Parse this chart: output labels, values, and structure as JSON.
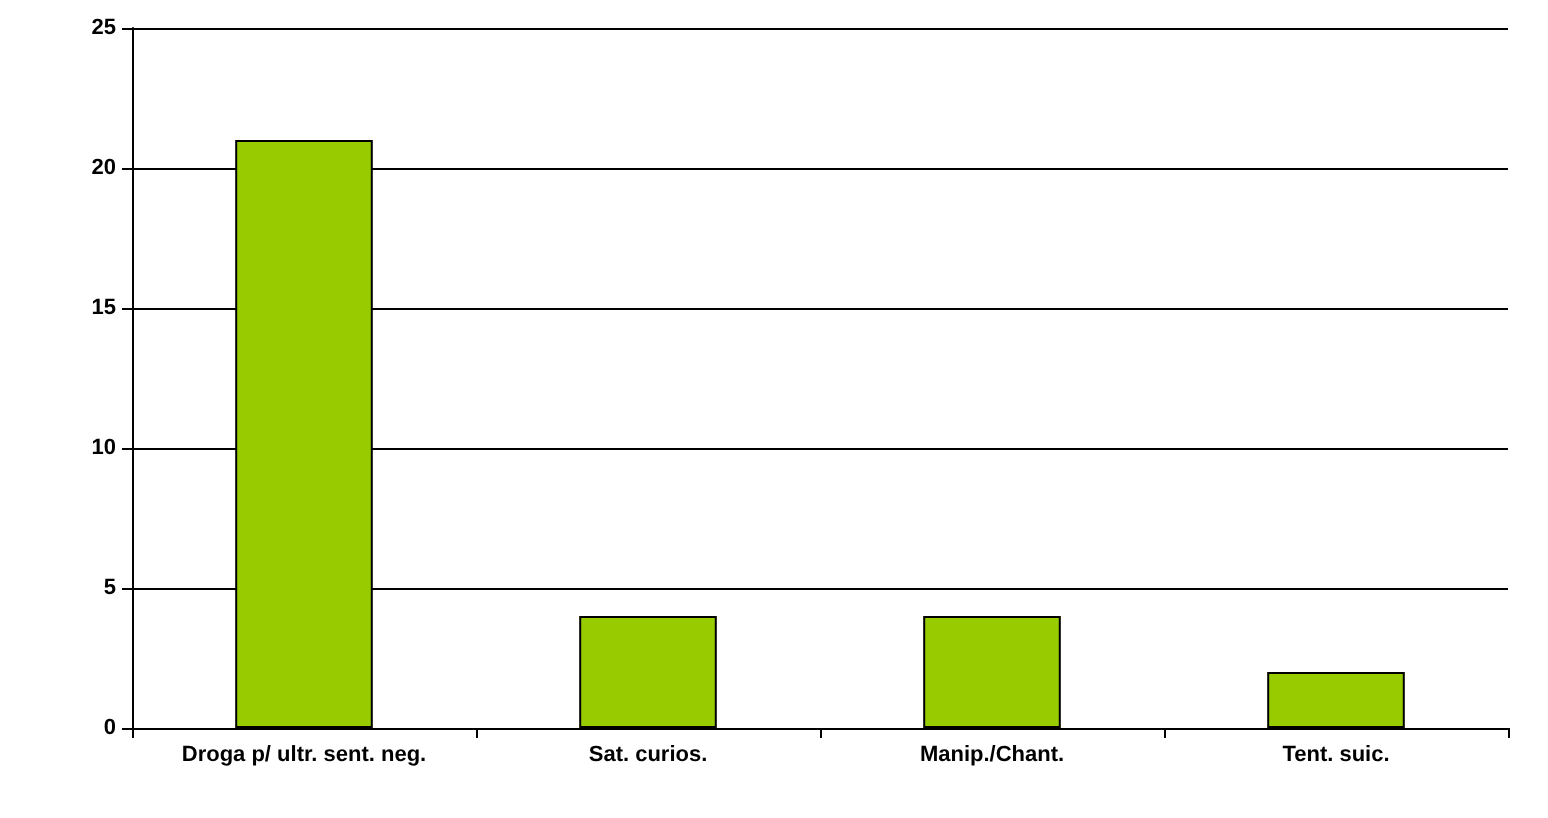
{
  "chart_data": {
    "type": "bar",
    "categories": [
      "Droga p/ ultr. sent. neg.",
      "Sat. curios.",
      "Manip./Chant.",
      "Tent. suic."
    ],
    "values": [
      21,
      4,
      4,
      2
    ],
    "color": "#99cc00",
    "ylim": [
      0,
      25
    ],
    "yticks": [
      0,
      5,
      10,
      15,
      20,
      25
    ],
    "grid": "y"
  }
}
